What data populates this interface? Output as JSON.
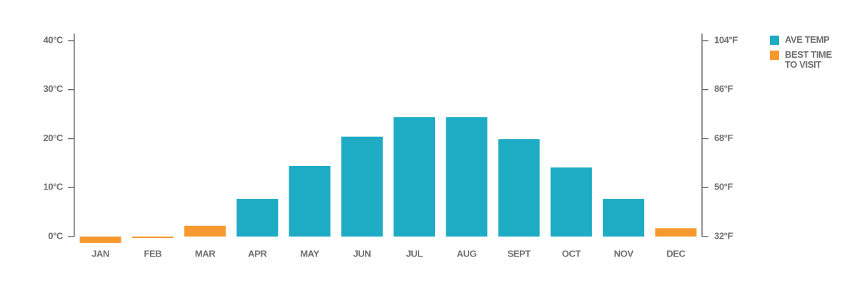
{
  "chart_data": {
    "type": "bar",
    "categories": [
      "JAN",
      "FEB",
      "MAR",
      "APR",
      "MAY",
      "JUN",
      "JUL",
      "AUG",
      "SEPT",
      "OCT",
      "NOV",
      "DEC"
    ],
    "series": [
      {
        "name": "AVE TEMP",
        "color": "#1eabc4",
        "values": [
          null,
          null,
          null,
          7.7,
          14.4,
          20.4,
          24.4,
          24.4,
          19.9,
          14.1,
          7.7,
          null
        ]
      },
      {
        "name": "BEST TIME TO VISIT",
        "color": "#f7992f",
        "values": [
          -1.3,
          -0.3,
          2.2,
          null,
          null,
          null,
          null,
          null,
          null,
          null,
          null,
          1.7
        ]
      }
    ],
    "ylim": [
      0,
      40
    ],
    "yticks": [
      {
        "value": 0,
        "label": "0°C"
      },
      {
        "value": 10,
        "label": "10°C"
      },
      {
        "value": 20,
        "label": "20°C"
      },
      {
        "value": 30,
        "label": "30°C"
      },
      {
        "value": 40,
        "label": "40°C"
      }
    ],
    "y2lim": [
      32,
      104
    ],
    "y2ticks": [
      {
        "value": 32,
        "label": "32°F"
      },
      {
        "value": 50,
        "label": "50°F"
      },
      {
        "value": 68,
        "label": "68°F"
      },
      {
        "value": 86,
        "label": "86°F"
      },
      {
        "value": 104,
        "label": "104°F"
      }
    ],
    "legend": "right"
  }
}
